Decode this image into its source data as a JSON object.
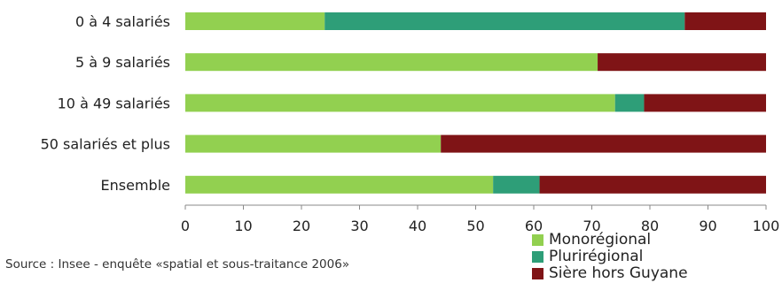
{
  "chart_data": {
    "type": "bar",
    "orientation": "horizontal",
    "stacked": true,
    "categories": [
      "0 à 4 salariés",
      "5 à 9 salariés",
      "10 à 49 salariés",
      "50 salariés et plus",
      "Ensemble"
    ],
    "series": [
      {
        "name": "Monorégional",
        "color": "#92d050",
        "values": [
          24,
          71,
          74,
          44,
          53
        ]
      },
      {
        "name": "Plurirégional",
        "color": "#2e9e78",
        "values": [
          62,
          0,
          5,
          0,
          8
        ]
      },
      {
        "name": "Sière hors Guyane",
        "color": "#7f1416",
        "values": [
          14,
          29,
          21,
          56,
          39
        ]
      }
    ],
    "xlim": [
      0,
      100
    ],
    "xticks": [
      "0",
      "10",
      "20",
      "30",
      "40",
      "50",
      "60",
      "70",
      "80",
      "90",
      "100"
    ],
    "legend_position": "bottom-right",
    "grid": false
  },
  "source": "Source : Insee - enquête «spatial et sous-traitance 2006»"
}
